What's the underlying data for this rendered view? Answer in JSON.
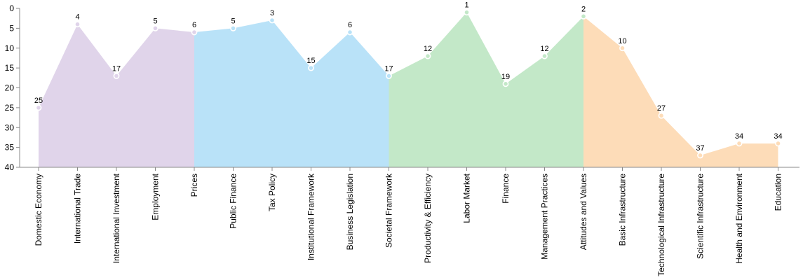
{
  "chart_data": {
    "type": "area",
    "categories": [
      "Domestic Economy",
      "International Trade",
      "International Investment",
      "Employment",
      "Prices",
      "Public Finance",
      "Tax Policy",
      "Institutional Framework",
      "Business Legislation",
      "Societal Framework",
      "Productivity & Efficiency",
      "Labor Market",
      "Finance",
      "Management Practices",
      "Attitudes and Values",
      "Basic Infrastructure",
      "Technological Infrastructure",
      "Scientific Infrastructure",
      "Health and Environment",
      "Education"
    ],
    "values": [
      25,
      4,
      17,
      5,
      6,
      5,
      3,
      15,
      6,
      17,
      12,
      1,
      19,
      12,
      2,
      10,
      27,
      37,
      34,
      34
    ],
    "groups": [
      {
        "start": 0,
        "end": 4,
        "color": "#e0d4ea"
      },
      {
        "start": 4,
        "end": 9,
        "color": "#b9e2f8"
      },
      {
        "start": 9,
        "end": 14,
        "color": "#c3e8c8"
      },
      {
        "start": 14,
        "end": 19,
        "color": "#fddcb8"
      }
    ],
    "y_axis": {
      "reversed": true,
      "ylim": [
        0,
        40
      ],
      "ticks": [
        0,
        5,
        10,
        15,
        20,
        25,
        30,
        35,
        40
      ]
    },
    "grid": false,
    "title": "",
    "xlabel": "",
    "ylabel": "",
    "colors": {
      "axis": "#888888",
      "marker_stroke": "#ffffff",
      "text": "#000000"
    }
  }
}
